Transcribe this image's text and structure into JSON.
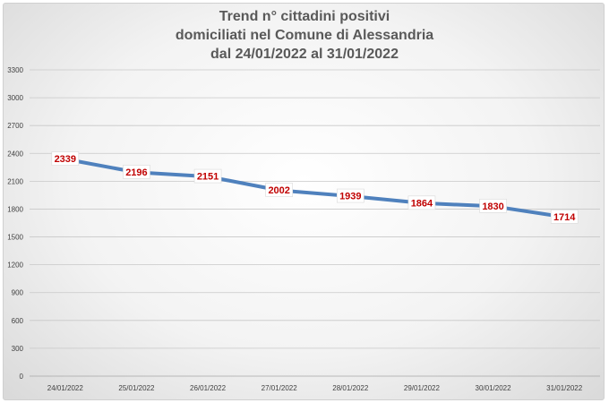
{
  "chart_data": {
    "type": "line",
    "title_lines": [
      "Trend n° cittadini positivi",
      "domiciliati nel Comune di Alessandria",
      "dal 24/01/2022 al 31/01/2022"
    ],
    "categories": [
      "24/01/2022",
      "25/01/2022",
      "26/01/2022",
      "27/01/2022",
      "28/01/2022",
      "29/01/2022",
      "30/01/2022",
      "31/01/2022"
    ],
    "series": [
      {
        "values": [
          2339,
          2196,
          2151,
          2002,
          1939,
          1864,
          1830,
          1714
        ]
      }
    ],
    "ylim": [
      0,
      3300
    ],
    "yticks": [
      0,
      300,
      600,
      900,
      1200,
      1500,
      1800,
      2100,
      2400,
      2700,
      3000,
      3300
    ],
    "grid": true,
    "legend": "none",
    "colors": {
      "line": "#4f81bd",
      "data_label": "#c00000",
      "grid": "#c8c8c8",
      "title": "#595959"
    }
  }
}
